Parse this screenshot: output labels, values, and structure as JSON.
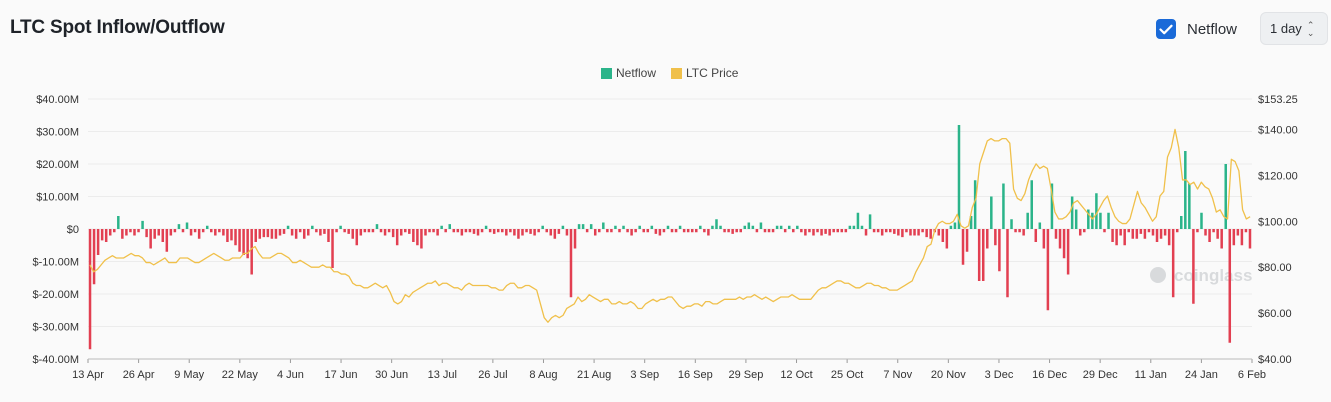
{
  "header": {
    "title": "LTC Spot Inflow/Outflow",
    "netflow_toggle": {
      "label": "Netflow",
      "checked": true
    },
    "interval": {
      "value": "1 day"
    }
  },
  "colors": {
    "positive": "#2bb48a",
    "negative": "#e23f51",
    "price": "#f0c04a",
    "accent": "#1a6ad8"
  },
  "chart_data": {
    "type": "bar",
    "legend": [
      "Netflow",
      "LTC Price"
    ],
    "legend_position": "top-center",
    "grid": true,
    "watermark": "coinglass",
    "y_left": {
      "ylim": [
        -40,
        40
      ],
      "ticks": [
        "$40.00M",
        "$30.00M",
        "$20.00M",
        "$10.00M",
        "$0",
        "$-10.00M",
        "$-20.00M",
        "$-30.00M",
        "$-40.00M"
      ]
    },
    "y_right": {
      "ylim": [
        40,
        153.25
      ],
      "ticks": [
        "$153.25",
        "$140.00",
        "$120.00",
        "$100.00",
        "$80.00",
        "$60.00",
        "$40.00"
      ]
    },
    "x_ticks": [
      "13 Apr",
      "26 Apr",
      "9 May",
      "22 May",
      "4 Jun",
      "17 Jun",
      "30 Jun",
      "13 Jul",
      "26 Jul",
      "8 Aug",
      "21 Aug",
      "3 Sep",
      "16 Sep",
      "29 Sep",
      "12 Oct",
      "25 Oct",
      "7 Nov",
      "20 Nov",
      "3 Dec",
      "16 Dec",
      "29 Dec",
      "11 Jan",
      "24 Jan",
      "6 Feb"
    ],
    "start_date": "2024-04-13",
    "netflow_millions": [
      -37,
      -17,
      -8,
      -3.5,
      -4,
      -2,
      -1,
      4,
      -3,
      -2,
      -1,
      -2,
      -1,
      2.5,
      -2.5,
      -6,
      -3,
      -2,
      -4,
      -7,
      -2,
      -1,
      1.5,
      -1,
      2,
      -2,
      -1,
      -3,
      -1,
      1,
      -1,
      -2,
      -1,
      -2,
      -4,
      -3.5,
      -5,
      -7,
      -8,
      -9,
      -14,
      -4,
      -3,
      -2.5,
      -2.5,
      -3,
      -3,
      -2,
      -1.5,
      1,
      -2,
      -3,
      -1,
      -3,
      -2,
      1,
      -1,
      -2,
      -1.5,
      -4,
      -12,
      -1,
      1,
      -1,
      -1.5,
      -3,
      -5,
      -2,
      -1,
      -1,
      -1,
      1.5,
      -1,
      -2,
      -1,
      -2.5,
      -5,
      -2,
      -1,
      -1.5,
      -4,
      -5,
      -6,
      -2,
      -1,
      -1,
      -2,
      1,
      -1,
      1.5,
      -1,
      -1,
      -2,
      -1,
      -1,
      -1.5,
      -2,
      -1,
      1,
      -1,
      -1.5,
      -1,
      -1,
      -2,
      -1,
      -2,
      -3,
      -2,
      -1,
      -1.5,
      -2,
      -1,
      1,
      -1,
      -2,
      -3,
      -1.5,
      1,
      -2,
      -21,
      -6,
      1.5,
      1.5,
      -1,
      1.5,
      -2,
      -1,
      2,
      -1,
      -1,
      1,
      -1,
      1,
      -1,
      -2,
      -1,
      1,
      -1,
      -1,
      1,
      -1.5,
      -2,
      -1,
      1,
      -1,
      -1,
      1,
      -1,
      -1,
      -1,
      -1,
      1,
      -1,
      -2,
      1,
      3,
      1,
      -1,
      -1,
      -1.5,
      -1,
      -1,
      1,
      2,
      1,
      -1,
      2,
      -1,
      -1,
      -1,
      1,
      1,
      -1,
      1,
      -1,
      1,
      -1,
      -2,
      -1,
      -2,
      -1,
      -2,
      -1.5,
      -2,
      -1,
      -1,
      -1,
      -1,
      1,
      1,
      5,
      1,
      -2,
      4.5,
      -1,
      -1,
      -2,
      -1,
      -1,
      -1.5,
      -2,
      -2.5,
      -1,
      -2,
      -2,
      -2,
      -1,
      -2.5,
      -3,
      -1,
      -2,
      -4,
      -6,
      1,
      2,
      32,
      -11,
      -7,
      4,
      15,
      -16,
      -16,
      -6,
      10,
      -5,
      -13,
      14,
      -21,
      3,
      -1,
      -1,
      -2,
      5,
      15,
      -4,
      2,
      -6,
      -25,
      14,
      -3,
      -6,
      -9,
      -14,
      10,
      6,
      -2,
      -1,
      6,
      5,
      11,
      5,
      -1,
      5,
      -4,
      -5,
      -2,
      -5,
      -1,
      -3,
      -3,
      -1.5,
      -3,
      -1,
      -2,
      -4,
      -3,
      -2,
      -5,
      -21,
      -1,
      4,
      24,
      14,
      -23,
      -1,
      5,
      -2,
      -4,
      -1,
      -3,
      -6,
      20,
      -35,
      -5,
      -2,
      -5,
      -1,
      -6
    ],
    "ltc_price": [
      81,
      78,
      79,
      81,
      83,
      84,
      85,
      84,
      84,
      84,
      85,
      86,
      85,
      85,
      84,
      82,
      82,
      81,
      82,
      83,
      84,
      82,
      82,
      82,
      84,
      84,
      84,
      83,
      82,
      82,
      83,
      84,
      85,
      86,
      85,
      84,
      83,
      83,
      84,
      84,
      84,
      86,
      86,
      88,
      89,
      86,
      84,
      84,
      84,
      85,
      86,
      86,
      85,
      84,
      82,
      82,
      83,
      82,
      81,
      80,
      80,
      80,
      81,
      80,
      80,
      78,
      78,
      77,
      77,
      76,
      73,
      72,
      72,
      71,
      71,
      72,
      73,
      72,
      71,
      72,
      69,
      65,
      64,
      65,
      68,
      67,
      69,
      70,
      71,
      72,
      73,
      73,
      74,
      72,
      73,
      73,
      72,
      71,
      71,
      70,
      72,
      73,
      72,
      72,
      72,
      72,
      72,
      71,
      71,
      70,
      70,
      72,
      73,
      73,
      71,
      71,
      72,
      72,
      71,
      70,
      64,
      58,
      56,
      58,
      59,
      58,
      59,
      62,
      63,
      64,
      67,
      65,
      66,
      68,
      67,
      66,
      65,
      66,
      66,
      64,
      64,
      65,
      64,
      64,
      65,
      64,
      62,
      62,
      64,
      65,
      66,
      65,
      66,
      66,
      67,
      67,
      65,
      63,
      62,
      63,
      63,
      64,
      64,
      63,
      65,
      65,
      64,
      64,
      65,
      66,
      66,
      66,
      66,
      67,
      66,
      67,
      67,
      68,
      67,
      66,
      67,
      66,
      65,
      66,
      67,
      67,
      67,
      68,
      67,
      66,
      66,
      66,
      66,
      68,
      70,
      71,
      71,
      72,
      73,
      74,
      74,
      73,
      73,
      72,
      71,
      71,
      72,
      73,
      73,
      72,
      72,
      71,
      71,
      70,
      70,
      70,
      71,
      72,
      73,
      74,
      78,
      81,
      84,
      89,
      90,
      96,
      99,
      100,
      99,
      99,
      100,
      103,
      98,
      97,
      98,
      106,
      110,
      125,
      130,
      135,
      136,
      135,
      135,
      136,
      136,
      134,
      114,
      110,
      109,
      112,
      118,
      122,
      125,
      123,
      124,
      123,
      114,
      104,
      101,
      101,
      102,
      104,
      108,
      109,
      107,
      105,
      103,
      101,
      103,
      106,
      109,
      111,
      106,
      102,
      100,
      99,
      99,
      101,
      107,
      113,
      108,
      106,
      103,
      100,
      102,
      111,
      113,
      128,
      132,
      140,
      132,
      118,
      118,
      116,
      117,
      114,
      117,
      115,
      114,
      110,
      104,
      105,
      102,
      101,
      127,
      126,
      122,
      105,
      101,
      102
    ]
  }
}
